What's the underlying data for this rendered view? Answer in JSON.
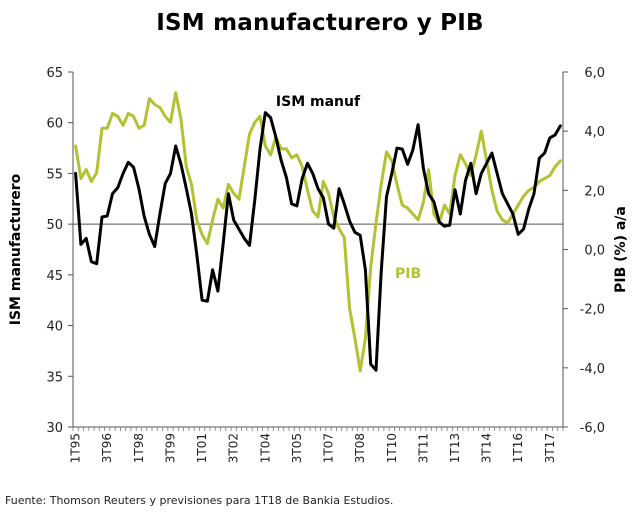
{
  "chart_data": {
    "type": "line",
    "title": "ISM manufacturero y PIB",
    "source": "Fuente: Thomson Reuters y previsiones para 1T18 de Bankia Estudios.",
    "ylabel_left": "ISM manufacturero",
    "ylabel_right": "PIB (%) a/a",
    "ylim_left": [
      30,
      65
    ],
    "ylim_right": [
      -6,
      6
    ],
    "yticks_left": [
      "30",
      "35",
      "40",
      "45",
      "50",
      "55",
      "60",
      "65"
    ],
    "yticks_right": [
      "-6,0",
      "-4,0",
      "-2,0",
      "0,0",
      "2,0",
      "4,0",
      "6,0"
    ],
    "x_tick_labels": [
      "1T95",
      "3T96",
      "1T98",
      "3T99",
      "1T01",
      "3T02",
      "1T04",
      "3T05",
      "1T07",
      "3T08",
      "1T10",
      "3T11",
      "1T13",
      "3T14",
      "1T16",
      "3T17"
    ],
    "x_tick_step": 6,
    "n_periods": 93,
    "series": [
      {
        "name": "ISM manuf",
        "axis": "left",
        "color": "#000000",
        "values": [
          55.0,
          48.0,
          48.6,
          46.3,
          46.1,
          50.7,
          50.8,
          53.0,
          53.6,
          55.0,
          56.1,
          55.6,
          53.5,
          50.8,
          49.0,
          47.8,
          51.0,
          54.0,
          55.0,
          57.7,
          55.9,
          53.5,
          51.0,
          47.0,
          42.5,
          42.4,
          45.5,
          43.4,
          48.1,
          53.0,
          50.4,
          49.5,
          48.6,
          47.9,
          52.4,
          57.4,
          61.0,
          60.5,
          58.6,
          56.3,
          54.6,
          52.0,
          51.8,
          54.5,
          56.0,
          55.0,
          53.5,
          52.6,
          50.0,
          49.6,
          53.5,
          52.0,
          50.3,
          49.2,
          48.9,
          45.5,
          36.2,
          35.6,
          45.3,
          52.7,
          55.0,
          57.5,
          57.4,
          55.9,
          57.3,
          59.8,
          55.5,
          53.0,
          52.2,
          50.2,
          49.8,
          49.9,
          53.4,
          51.0,
          54.3,
          56.0,
          53.0,
          55.0,
          56.0,
          57.0,
          55.0,
          53.0,
          52.0,
          51.0,
          49.0,
          49.5,
          51.5,
          53.0,
          56.5,
          57.0,
          58.5,
          58.8,
          59.7
        ]
      },
      {
        "name": "PIB",
        "axis": "right",
        "color": "#b4c132",
        "values": [
          3.5,
          2.4,
          2.7,
          2.3,
          2.6,
          4.1,
          4.1,
          4.6,
          4.5,
          4.2,
          4.6,
          4.5,
          4.1,
          4.2,
          5.1,
          4.9,
          4.8,
          4.5,
          4.3,
          5.3,
          4.4,
          2.8,
          2.2,
          1.0,
          0.5,
          0.2,
          1.0,
          1.7,
          1.4,
          2.2,
          1.9,
          1.7,
          2.8,
          3.9,
          4.3,
          4.5,
          3.5,
          3.2,
          3.8,
          3.4,
          3.4,
          3.1,
          3.2,
          2.8,
          2.0,
          1.3,
          1.1,
          2.3,
          1.9,
          1.1,
          0.7,
          0.4,
          -2.0,
          -3.0,
          -4.1,
          -3.0,
          -0.6,
          0.9,
          2.2,
          3.3,
          3.0,
          2.2,
          1.5,
          1.4,
          1.2,
          1.0,
          1.6,
          2.7,
          1.2,
          0.9,
          1.5,
          1.2,
          2.5,
          3.2,
          2.9,
          2.5,
          3.2,
          4.0,
          3.0,
          2.0,
          1.3,
          1.0,
          0.9,
          1.2,
          1.5,
          1.8,
          2.0,
          2.1,
          2.3,
          2.4,
          2.5,
          2.8,
          3.0
        ]
      }
    ],
    "annotations": [
      {
        "text": "ISM manuf",
        "series": "ISM manuf",
        "color": "#000000",
        "placement": "above peak near 1T04"
      },
      {
        "text": "PIB",
        "series": "PIB",
        "color": "#b4c132",
        "placement": "right of trough near 3T08"
      }
    ]
  }
}
